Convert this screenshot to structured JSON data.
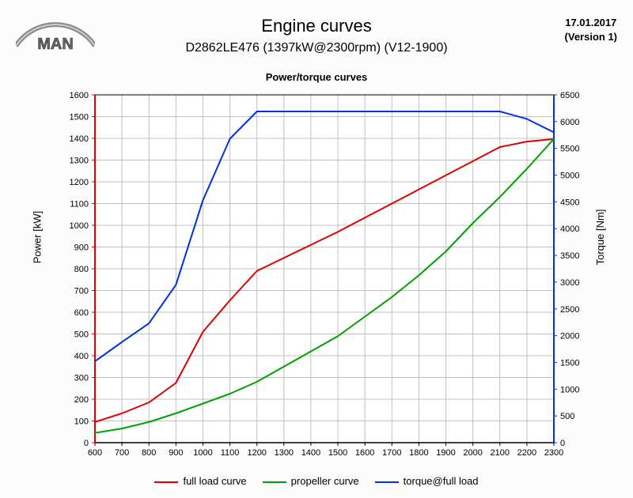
{
  "header": {
    "title": "Engine curves",
    "subtitle": "D2862LE476 (1397kW@2300rpm) (V12-1900)",
    "date": "17.01.2017",
    "version": "(Version 1)",
    "logo_text": "MAN"
  },
  "chart": {
    "type": "line-dual-axis",
    "title": "Power/torque curves",
    "background_color": "#ffffff",
    "grid_color": "#c0c0c0",
    "x": {
      "min": 600,
      "max": 2300,
      "step": 100,
      "ticks": [
        600,
        700,
        800,
        900,
        1000,
        1100,
        1200,
        1300,
        1400,
        1500,
        1600,
        1700,
        1800,
        1900,
        2000,
        2100,
        2200,
        2300
      ]
    },
    "y_left": {
      "label": "Power [kW]",
      "min": 0,
      "max": 1600,
      "step": 100,
      "ticks": [
        0,
        100,
        200,
        300,
        400,
        500,
        600,
        700,
        800,
        900,
        1000,
        1100,
        1200,
        1300,
        1400,
        1500,
        1600
      ],
      "axis_color": "#e00000"
    },
    "y_right": {
      "label": "Torque [Nm]",
      "min": 0,
      "max": 6500,
      "step": 500,
      "ticks": [
        0,
        500,
        1000,
        1500,
        2000,
        2500,
        3000,
        3500,
        4000,
        4500,
        5000,
        5500,
        6000,
        6500
      ],
      "axis_color": "#0030e0"
    },
    "series": {
      "full_load": {
        "label": "full load curve",
        "color": "#e00000",
        "width": 2,
        "axis": "left",
        "x": [
          600,
          700,
          800,
          900,
          1000,
          1100,
          1200,
          1300,
          1400,
          1500,
          1600,
          1700,
          1800,
          1900,
          2000,
          2100,
          2200,
          2300
        ],
        "y": [
          95,
          135,
          185,
          275,
          510,
          655,
          790,
          850,
          910,
          970,
          1035,
          1100,
          1165,
          1230,
          1295,
          1360,
          1385,
          1397
        ]
      },
      "propeller": {
        "label": "propeller curve",
        "color": "#00a000",
        "width": 2,
        "axis": "left",
        "x": [
          600,
          700,
          800,
          900,
          1000,
          1100,
          1200,
          1300,
          1400,
          1500,
          1600,
          1700,
          1800,
          1900,
          2000,
          2100,
          2200,
          2300
        ],
        "y": [
          45,
          65,
          95,
          135,
          180,
          225,
          280,
          350,
          420,
          490,
          580,
          670,
          770,
          880,
          1010,
          1130,
          1260,
          1397
        ]
      },
      "torque": {
        "label": "torque@full load",
        "color": "#0030e0",
        "width": 2,
        "axis": "right",
        "x": [
          600,
          700,
          800,
          900,
          1000,
          1100,
          1200,
          1300,
          1400,
          1500,
          1600,
          1700,
          1800,
          1900,
          2000,
          2100,
          2200,
          2300
        ],
        "y": [
          1520,
          1880,
          2230,
          2950,
          4530,
          5680,
          6190,
          6190,
          6190,
          6190,
          6190,
          6190,
          6190,
          6190,
          6190,
          6190,
          6050,
          5800
        ]
      }
    },
    "tick_fontsize": 11,
    "label_fontsize": 13
  },
  "legend": {
    "items": [
      {
        "key": "full_load",
        "label": "full load curve",
        "color": "#e00000"
      },
      {
        "key": "propeller",
        "label": "propeller curve",
        "color": "#00a000"
      },
      {
        "key": "torque",
        "label": "torque@full load",
        "color": "#0030e0"
      }
    ]
  }
}
